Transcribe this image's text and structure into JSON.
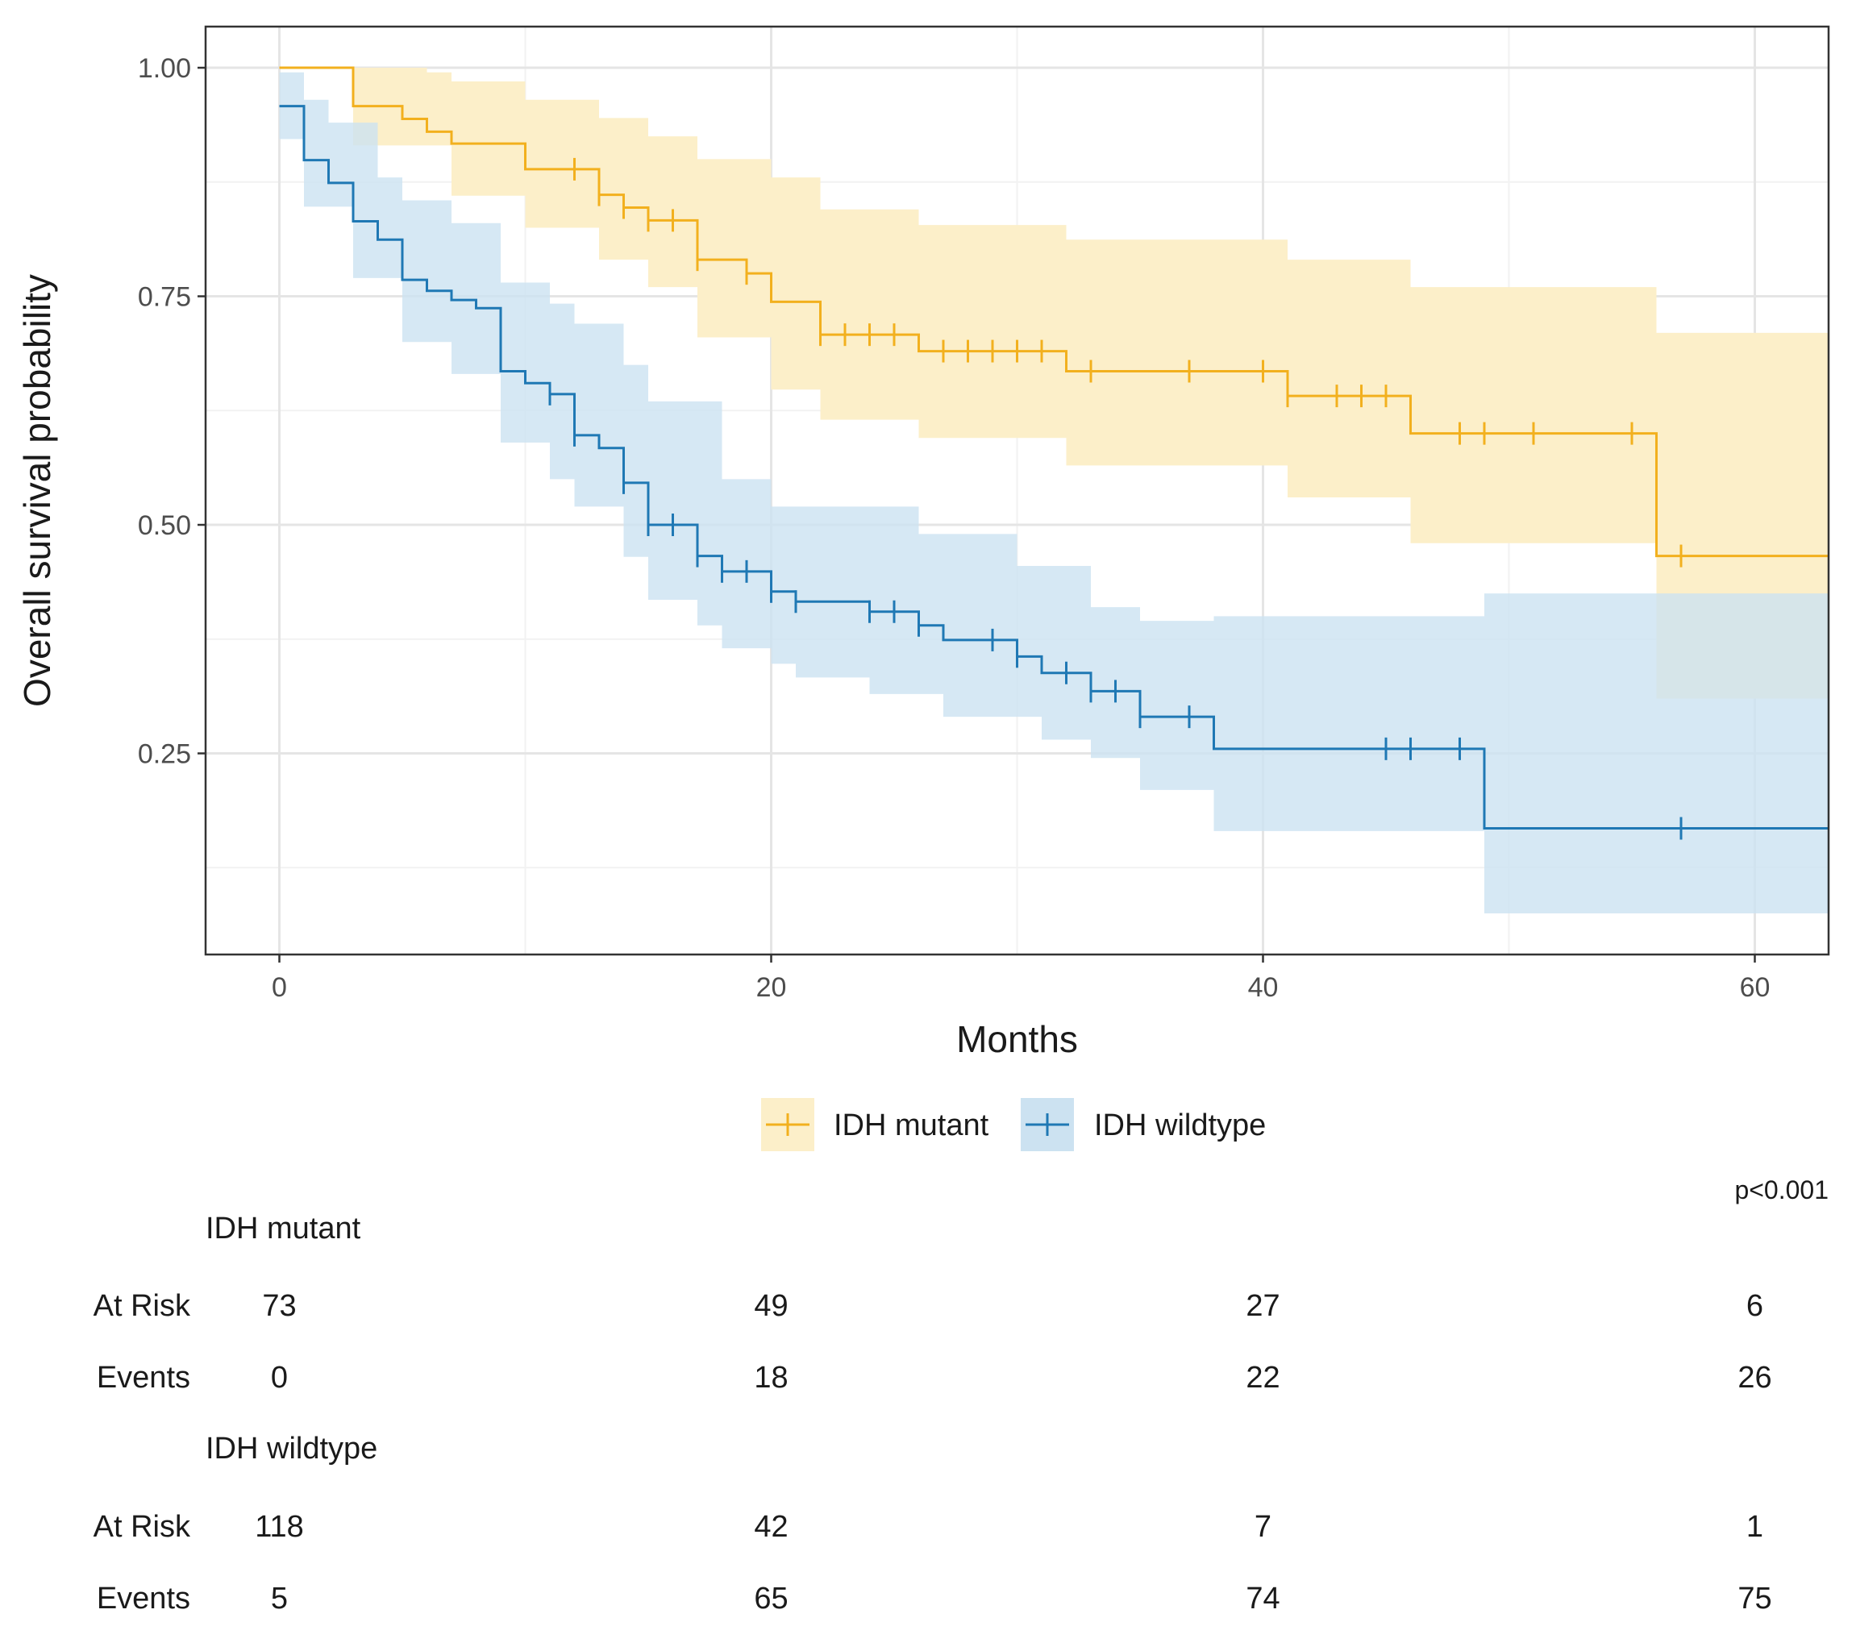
{
  "chart_data": {
    "type": "line",
    "subtype": "kaplan-meier",
    "xlabel": "Months",
    "ylabel": "Overall survival probability",
    "xlim": [
      -3,
      63
    ],
    "ylim": [
      0.03,
      1.045
    ],
    "x_ticks": [
      0,
      20,
      40,
      60
    ],
    "x_tick_labels": [
      "0",
      "20",
      "40",
      "60"
    ],
    "y_ticks": [
      0.25,
      0.5,
      0.75,
      1.0
    ],
    "y_tick_labels": [
      "0.25",
      "0.50",
      "0.75",
      "1.00"
    ],
    "y_minor_gridlines": [
      0.125,
      0.375,
      0.625,
      0.875
    ],
    "x_minor_gridlines": [
      10,
      30,
      50
    ],
    "grid": true,
    "legend_position": "bottom",
    "p_value": "p<0.001",
    "series": [
      {
        "name": "IDH mutant",
        "color": "#F2B01E",
        "band_color": "#FCEFC9",
        "steps": [
          [
            0,
            1.0
          ],
          [
            3,
            0.958
          ],
          [
            5,
            0.944
          ],
          [
            6,
            0.93
          ],
          [
            7,
            0.917
          ],
          [
            10,
            0.889
          ],
          [
            13,
            0.861
          ],
          [
            14,
            0.847
          ],
          [
            15,
            0.833
          ],
          [
            17,
            0.79
          ],
          [
            19,
            0.775
          ],
          [
            20,
            0.744
          ],
          [
            22,
            0.708
          ],
          [
            26,
            0.69
          ],
          [
            32,
            0.668
          ],
          [
            41,
            0.641
          ],
          [
            46,
            0.6
          ],
          [
            56,
            0.466
          ],
          [
            63,
            0.466
          ]
        ],
        "lower": [
          [
            0,
            1.0
          ],
          [
            3,
            0.915
          ],
          [
            7,
            0.86
          ],
          [
            10,
            0.825
          ],
          [
            13,
            0.79
          ],
          [
            15,
            0.76
          ],
          [
            17,
            0.705
          ],
          [
            20,
            0.648
          ],
          [
            22,
            0.615
          ],
          [
            26,
            0.595
          ],
          [
            32,
            0.565
          ],
          [
            41,
            0.53
          ],
          [
            46,
            0.48
          ],
          [
            56,
            0.31
          ],
          [
            63,
            0.31
          ]
        ],
        "upper": [
          [
            0,
            1.0
          ],
          [
            3,
            1.0
          ],
          [
            6,
            0.995
          ],
          [
            7,
            0.985
          ],
          [
            10,
            0.965
          ],
          [
            13,
            0.945
          ],
          [
            15,
            0.925
          ],
          [
            17,
            0.9
          ],
          [
            20,
            0.88
          ],
          [
            22,
            0.845
          ],
          [
            26,
            0.828
          ],
          [
            32,
            0.812
          ],
          [
            41,
            0.79
          ],
          [
            46,
            0.76
          ],
          [
            56,
            0.71
          ],
          [
            63,
            0.71
          ]
        ],
        "censor_times": [
          12,
          13,
          14,
          15,
          16,
          17,
          19,
          22,
          23,
          24,
          25,
          27,
          28,
          29,
          30,
          31,
          33,
          37,
          40,
          41,
          43,
          44,
          45,
          48,
          49,
          51,
          55,
          57
        ]
      },
      {
        "name": "IDH wildtype",
        "color": "#1F78B4",
        "band_color": "#CCE2F1",
        "steps": [
          [
            0,
            0.958
          ],
          [
            1,
            0.899
          ],
          [
            2,
            0.874
          ],
          [
            3,
            0.832
          ],
          [
            4,
            0.812
          ],
          [
            5,
            0.768
          ],
          [
            6,
            0.756
          ],
          [
            7,
            0.746
          ],
          [
            8,
            0.737
          ],
          [
            9,
            0.668
          ],
          [
            10,
            0.655
          ],
          [
            11,
            0.643
          ],
          [
            12,
            0.598
          ],
          [
            13,
            0.584
          ],
          [
            14,
            0.546
          ],
          [
            15,
            0.5
          ],
          [
            17,
            0.466
          ],
          [
            18,
            0.449
          ],
          [
            20,
            0.427
          ],
          [
            21,
            0.416
          ],
          [
            24,
            0.405
          ],
          [
            26,
            0.39
          ],
          [
            27,
            0.374
          ],
          [
            30,
            0.356
          ],
          [
            31,
            0.338
          ],
          [
            33,
            0.318
          ],
          [
            35,
            0.29
          ],
          [
            38,
            0.255
          ],
          [
            49,
            0.168
          ],
          [
            63,
            0.168
          ]
        ],
        "lower": [
          [
            0,
            0.922
          ],
          [
            1,
            0.848
          ],
          [
            3,
            0.77
          ],
          [
            5,
            0.7
          ],
          [
            7,
            0.665
          ],
          [
            9,
            0.59
          ],
          [
            11,
            0.55
          ],
          [
            12,
            0.52
          ],
          [
            14,
            0.465
          ],
          [
            15,
            0.418
          ],
          [
            17,
            0.39
          ],
          [
            18,
            0.365
          ],
          [
            20,
            0.348
          ],
          [
            21,
            0.333
          ],
          [
            24,
            0.315
          ],
          [
            27,
            0.29
          ],
          [
            31,
            0.265
          ],
          [
            33,
            0.245
          ],
          [
            35,
            0.21
          ],
          [
            38,
            0.165
          ],
          [
            49,
            0.075
          ],
          [
            63,
            0.075
          ]
        ],
        "upper": [
          [
            0,
            0.995
          ],
          [
            1,
            0.965
          ],
          [
            2,
            0.94
          ],
          [
            4,
            0.88
          ],
          [
            5,
            0.855
          ],
          [
            7,
            0.83
          ],
          [
            9,
            0.765
          ],
          [
            11,
            0.742
          ],
          [
            12,
            0.72
          ],
          [
            14,
            0.675
          ],
          [
            15,
            0.635
          ],
          [
            18,
            0.55
          ],
          [
            20,
            0.52
          ],
          [
            26,
            0.49
          ],
          [
            30,
            0.455
          ],
          [
            33,
            0.41
          ],
          [
            35,
            0.395
          ],
          [
            38,
            0.4
          ],
          [
            49,
            0.425
          ],
          [
            63,
            0.425
          ]
        ],
        "censor_times": [
          11,
          12,
          14,
          15,
          16,
          17,
          18,
          19,
          20,
          21,
          24,
          25,
          26,
          29,
          30,
          32,
          33,
          34,
          35,
          37,
          45,
          46,
          48,
          57
        ]
      }
    ],
    "risk_table": {
      "times": [
        0,
        20,
        40,
        60
      ],
      "row_labels": [
        "At Risk",
        "Events"
      ],
      "groups": [
        {
          "name": "IDH mutant",
          "at_risk": [
            "73",
            "49",
            "27",
            "6"
          ],
          "events": [
            "0",
            "18",
            "22",
            "26"
          ]
        },
        {
          "name": "IDH wildtype",
          "at_risk": [
            "118",
            "42",
            "7",
            "1"
          ],
          "events": [
            "5",
            "65",
            "74",
            "75"
          ]
        }
      ]
    }
  }
}
